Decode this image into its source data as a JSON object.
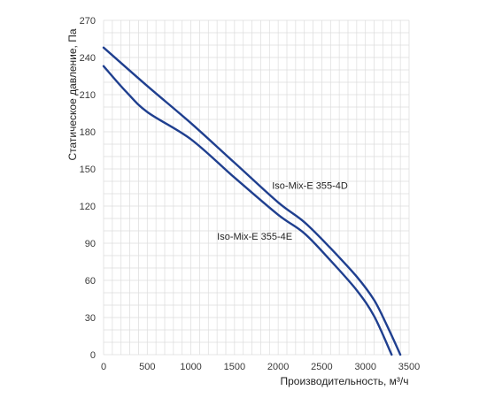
{
  "chart_data": {
    "type": "line",
    "title": "",
    "xlabel": "Производительность, м³/ч",
    "ylabel": "Статическое давление, Па",
    "xlim": [
      0,
      3500
    ],
    "ylim": [
      0,
      270
    ],
    "x_ticks": [
      "0",
      "500",
      "1000",
      "1500",
      "2000",
      "2500",
      "3000",
      "3500"
    ],
    "y_ticks": [
      "0",
      "30",
      "60",
      "90",
      "120",
      "150",
      "180",
      "210",
      "240",
      "270"
    ],
    "grid": true,
    "legend": "none",
    "colors": {
      "line": "#1f3f8f",
      "grid": "#dcdcdc"
    },
    "series": [
      {
        "name": "Iso-Mix-E 355-4D",
        "label_at": [
          1930,
          134
        ],
        "x": [
          0,
          500,
          1000,
          1500,
          2000,
          2300,
          2600,
          2900,
          3100,
          3250,
          3400
        ],
        "y": [
          248,
          217,
          187,
          155,
          123,
          107,
          86,
          63,
          44,
          23,
          0
        ]
      },
      {
        "name": "Iso-Mix-E 355-4E",
        "label_at": [
          1300,
          93
        ],
        "x": [
          0,
          250,
          500,
          1000,
          1500,
          2000,
          2300,
          2600,
          2900,
          3100,
          3300
        ],
        "y": [
          233,
          213,
          196,
          174,
          143,
          113,
          98,
          76,
          52,
          31,
          0
        ]
      }
    ]
  }
}
